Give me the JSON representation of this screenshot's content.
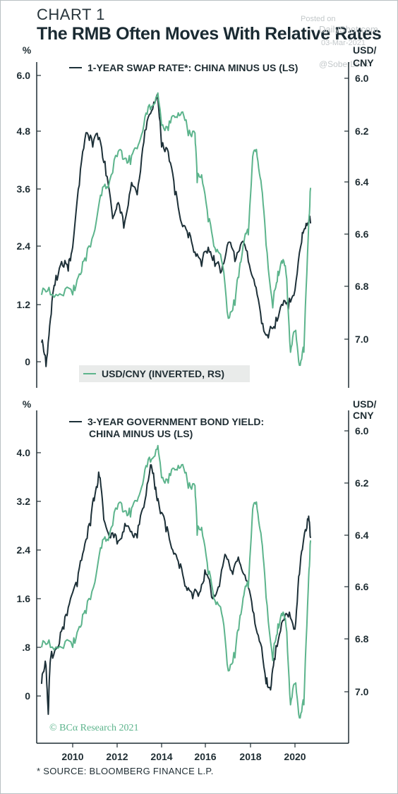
{
  "header": {
    "chart_label": "CHART 1",
    "title": "The RMB Often Moves With Relative Rates"
  },
  "watermark": {
    "line1": "Posted on",
    "line2": "DailyShot.com",
    "line3": "03-Mar-2021",
    "line4": "@SoberLook"
  },
  "footnote": "* SOURCE: BLOOMBERG FINANCE L.P.",
  "colors": {
    "dark_series": "#1d3038",
    "green_series": "#5cb48c",
    "axis": "#1f2d33",
    "legend_bg": "#e9ebea"
  },
  "chart_data": [
    {
      "type": "line",
      "left_unit": "%",
      "right_unit_line1": "USD/",
      "right_unit_line2": "CNY",
      "left_ticks": [
        "6.0",
        "4.8",
        "3.6",
        "2.4",
        "1.2",
        "0"
      ],
      "right_ticks": [
        "6.0",
        "6.2",
        "6.4",
        "6.6",
        "6.8",
        "7.0"
      ],
      "ylim_left": [
        -0.55,
        6.3
      ],
      "ylim_right_inverted": [
        5.95,
        7.19
      ],
      "x_range": [
        2008.6,
        2020.8
      ],
      "series": [
        {
          "name": "1-YEAR SWAP RATE*: CHINA MINUS US (LS)",
          "axis": "left",
          "x": [
            2008.6,
            2008.8,
            2009.0,
            2009.2,
            2009.5,
            2009.8,
            2010.0,
            2010.3,
            2010.6,
            2010.9,
            2011.2,
            2011.5,
            2011.8,
            2012.0,
            2012.3,
            2012.6,
            2012.9,
            2013.2,
            2013.5,
            2013.8,
            2014.0,
            2014.3,
            2014.6,
            2014.9,
            2015.2,
            2015.5,
            2015.8,
            2016.1,
            2016.4,
            2016.7,
            2017.0,
            2017.3,
            2017.6,
            2017.9,
            2018.2,
            2018.5,
            2018.8,
            2019.1,
            2019.4,
            2019.7,
            2020.0,
            2020.3,
            2020.5,
            2020.7
          ],
          "values": [
            0.4,
            -0.1,
            0.9,
            1.6,
            2.1,
            1.9,
            2.4,
            3.7,
            4.8,
            4.5,
            4.7,
            3.9,
            3.0,
            3.3,
            2.8,
            3.6,
            3.5,
            4.6,
            5.2,
            5.6,
            4.5,
            4.4,
            3.5,
            2.9,
            2.6,
            2.3,
            2.0,
            2.4,
            2.0,
            1.9,
            2.5,
            2.1,
            2.5,
            2.1,
            1.6,
            0.8,
            0.5,
            0.7,
            1.2,
            1.1,
            1.5,
            2.5,
            2.9,
            2.9
          ]
        },
        {
          "name": "USD/CNY (INVERTED, RS)",
          "axis": "right",
          "x": [
            2008.6,
            2009.0,
            2009.5,
            2010.0,
            2010.3,
            2010.6,
            2011.0,
            2011.3,
            2011.6,
            2012.0,
            2012.3,
            2012.6,
            2012.9,
            2013.2,
            2013.5,
            2013.8,
            2014.0,
            2014.3,
            2014.6,
            2014.9,
            2015.2,
            2015.5,
            2015.6,
            2015.8,
            2016.1,
            2016.4,
            2016.7,
            2017.0,
            2017.3,
            2017.5,
            2017.7,
            2017.9,
            2018.1,
            2018.3,
            2018.5,
            2018.7,
            2019.0,
            2019.2,
            2019.4,
            2019.6,
            2019.8,
            2020.0,
            2020.2,
            2020.4,
            2020.6,
            2020.7
          ],
          "values": [
            6.83,
            6.83,
            6.83,
            6.83,
            6.75,
            6.7,
            6.58,
            6.45,
            6.42,
            6.3,
            6.31,
            6.33,
            6.27,
            6.18,
            6.12,
            6.07,
            6.18,
            6.2,
            6.15,
            6.13,
            6.22,
            6.21,
            6.4,
            6.37,
            6.55,
            6.65,
            6.7,
            6.92,
            6.87,
            6.73,
            6.63,
            6.6,
            6.3,
            6.3,
            6.42,
            6.64,
            6.88,
            6.78,
            6.7,
            6.75,
            7.05,
            6.97,
            7.1,
            7.05,
            6.6,
            6.42
          ]
        }
      ]
    },
    {
      "type": "line",
      "left_unit": "%",
      "right_unit_line1": "USD/",
      "right_unit_line2": "CNY",
      "left_ticks": [
        "4.0",
        "3.2",
        "2.4",
        "1.6",
        ".8",
        "0"
      ],
      "right_ticks": [
        "6.0",
        "6.2",
        "6.4",
        "6.6",
        "6.8",
        "7.0"
      ],
      "x_ticks": [
        "2010",
        "2012",
        "2014",
        "2016",
        "2018",
        "2020"
      ],
      "ylim_left": [
        -0.78,
        4.4
      ],
      "ylim_right_inverted": [
        5.95,
        7.19
      ],
      "x_range": [
        2008.6,
        2020.8
      ],
      "copyright": "© BCα Research 2021",
      "series": [
        {
          "name": "3-YEAR GOVERNMENT BOND YIELD: CHINA MINUS US (LS)",
          "axis": "left",
          "x": [
            2008.6,
            2008.8,
            2008.9,
            2009.0,
            2009.3,
            2009.6,
            2009.9,
            2010.2,
            2010.5,
            2010.8,
            2011.0,
            2011.2,
            2011.4,
            2011.7,
            2012.0,
            2012.3,
            2012.6,
            2012.9,
            2013.2,
            2013.5,
            2013.7,
            2013.9,
            2014.2,
            2014.5,
            2014.8,
            2015.1,
            2015.4,
            2015.7,
            2016.0,
            2016.3,
            2016.6,
            2016.9,
            2017.2,
            2017.5,
            2017.8,
            2018.1,
            2018.4,
            2018.7,
            2018.9,
            2019.1,
            2019.4,
            2019.7,
            2020.0,
            2020.2,
            2020.4,
            2020.6,
            2020.7
          ],
          "values": [
            0.2,
            0.5,
            -0.3,
            0.6,
            0.8,
            1.1,
            1.6,
            1.8,
            2.4,
            2.8,
            3.3,
            3.6,
            2.9,
            2.6,
            2.5,
            2.7,
            2.7,
            2.6,
            3.1,
            3.8,
            3.4,
            3.1,
            2.7,
            2.4,
            2.1,
            1.8,
            1.6,
            1.7,
            2.0,
            1.6,
            1.8,
            2.3,
            2.0,
            2.2,
            1.9,
            1.4,
            0.9,
            0.2,
            0.1,
            0.6,
            1.2,
            1.3,
            1.1,
            2.0,
            2.6,
            2.9,
            2.6
          ]
        },
        {
          "name": "USD/CNY (INVERTED, RS)",
          "axis": "right",
          "x": [
            2008.6,
            2009.0,
            2009.5,
            2010.0,
            2010.3,
            2010.6,
            2011.0,
            2011.3,
            2011.6,
            2012.0,
            2012.3,
            2012.6,
            2012.9,
            2013.2,
            2013.5,
            2013.8,
            2014.0,
            2014.3,
            2014.6,
            2014.9,
            2015.2,
            2015.5,
            2015.6,
            2015.8,
            2016.1,
            2016.4,
            2016.7,
            2017.0,
            2017.3,
            2017.5,
            2017.7,
            2017.9,
            2018.1,
            2018.3,
            2018.5,
            2018.7,
            2019.0,
            2019.2,
            2019.4,
            2019.6,
            2019.8,
            2020.0,
            2020.2,
            2020.4,
            2020.6,
            2020.7
          ],
          "values": [
            6.83,
            6.83,
            6.83,
            6.83,
            6.75,
            6.7,
            6.58,
            6.45,
            6.42,
            6.3,
            6.31,
            6.33,
            6.27,
            6.18,
            6.12,
            6.07,
            6.18,
            6.2,
            6.15,
            6.13,
            6.22,
            6.21,
            6.4,
            6.37,
            6.55,
            6.65,
            6.7,
            6.92,
            6.87,
            6.73,
            6.63,
            6.6,
            6.3,
            6.3,
            6.42,
            6.64,
            6.88,
            6.78,
            6.7,
            6.75,
            7.05,
            6.97,
            7.1,
            7.05,
            6.6,
            6.42
          ]
        }
      ]
    }
  ]
}
